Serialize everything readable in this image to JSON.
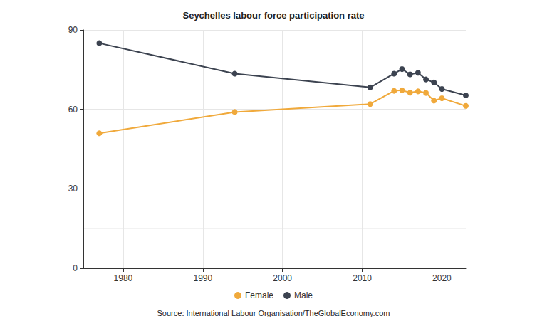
{
  "chart_data": {
    "type": "line",
    "title": "Seychelles labour force participation rate",
    "source": "Source: International Labour Organisation/TheGlobalEconomy.com",
    "x": [
      1977,
      1994,
      2011,
      2014,
      2015,
      2016,
      2017,
      2018,
      2019,
      2020,
      2023
    ],
    "series": [
      {
        "name": "Female",
        "color": "#f0a93b",
        "marker": "circle",
        "values": [
          51,
          59,
          62,
          67,
          67.2,
          66.3,
          66.8,
          66.2,
          63.3,
          64.2,
          61.3
        ]
      },
      {
        "name": "Male",
        "color": "#3c4350",
        "marker": "circle",
        "values": [
          85,
          73.5,
          68.3,
          73.5,
          75.2,
          73.2,
          73.8,
          71.3,
          70.2,
          67.7,
          65.3
        ]
      }
    ],
    "xlim": [
      1975,
      2023
    ],
    "xticks": [
      1980,
      1990,
      2000,
      2010,
      2020
    ],
    "ylim": [
      0,
      90
    ],
    "yticks": [
      0,
      30,
      60,
      90
    ],
    "grid": true,
    "legend": "bottom"
  }
}
